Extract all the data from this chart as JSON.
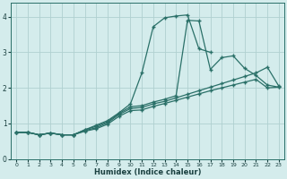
{
  "xlabel": "Humidex (Indice chaleur)",
  "xlim": [
    -0.5,
    23.5
  ],
  "ylim": [
    0,
    4.4
  ],
  "xticks": [
    0,
    1,
    2,
    3,
    4,
    5,
    6,
    7,
    8,
    9,
    10,
    11,
    12,
    13,
    14,
    15,
    16,
    17,
    18,
    19,
    20,
    21,
    22,
    23
  ],
  "yticks": [
    0,
    1,
    2,
    3,
    4
  ],
  "background_color": "#d4ecec",
  "grid_color": "#b0d0d0",
  "line_color": "#2a7068",
  "lines": [
    {
      "x": [
        0,
        1,
        2,
        3,
        4,
        5,
        6,
        7,
        8,
        9,
        10,
        11,
        12,
        13,
        14,
        15,
        16,
        17
      ],
      "y": [
        0.75,
        0.75,
        0.68,
        0.73,
        0.68,
        0.68,
        0.82,
        0.95,
        1.08,
        1.3,
        1.55,
        2.42,
        3.72,
        3.97,
        4.02,
        4.05,
        3.1,
        3.0
      ]
    },
    {
      "x": [
        0,
        1,
        2,
        3,
        4,
        5,
        6,
        7,
        8,
        9,
        10,
        11,
        12,
        13,
        14,
        15,
        16,
        17,
        18,
        19,
        20,
        21,
        22,
        23
      ],
      "y": [
        0.75,
        0.75,
        0.68,
        0.73,
        0.68,
        0.68,
        0.82,
        0.92,
        1.05,
        1.28,
        1.47,
        1.5,
        1.6,
        1.68,
        1.78,
        3.9,
        3.88,
        2.52,
        2.85,
        2.9,
        2.55,
        2.35,
        2.08,
        2.02
      ]
    },
    {
      "x": [
        0,
        1,
        2,
        3,
        4,
        5,
        6,
        7,
        8,
        9,
        10,
        11,
        12,
        13,
        14,
        15,
        16,
        17,
        18,
        19,
        20,
        21,
        22,
        23
      ],
      "y": [
        0.75,
        0.75,
        0.68,
        0.73,
        0.68,
        0.68,
        0.8,
        0.88,
        1.02,
        1.25,
        1.42,
        1.45,
        1.55,
        1.62,
        1.72,
        1.82,
        1.92,
        2.02,
        2.12,
        2.22,
        2.32,
        2.42,
        2.58,
        2.05
      ]
    },
    {
      "x": [
        0,
        1,
        2,
        3,
        4,
        5,
        6,
        7,
        8,
        9,
        10,
        11,
        12,
        13,
        14,
        15,
        16,
        17,
        18,
        19,
        20,
        21,
        22,
        23
      ],
      "y": [
        0.75,
        0.75,
        0.68,
        0.73,
        0.68,
        0.68,
        0.78,
        0.85,
        0.98,
        1.2,
        1.36,
        1.38,
        1.48,
        1.56,
        1.65,
        1.74,
        1.83,
        1.92,
        2.0,
        2.08,
        2.16,
        2.24,
        2.0,
        2.02
      ]
    }
  ]
}
